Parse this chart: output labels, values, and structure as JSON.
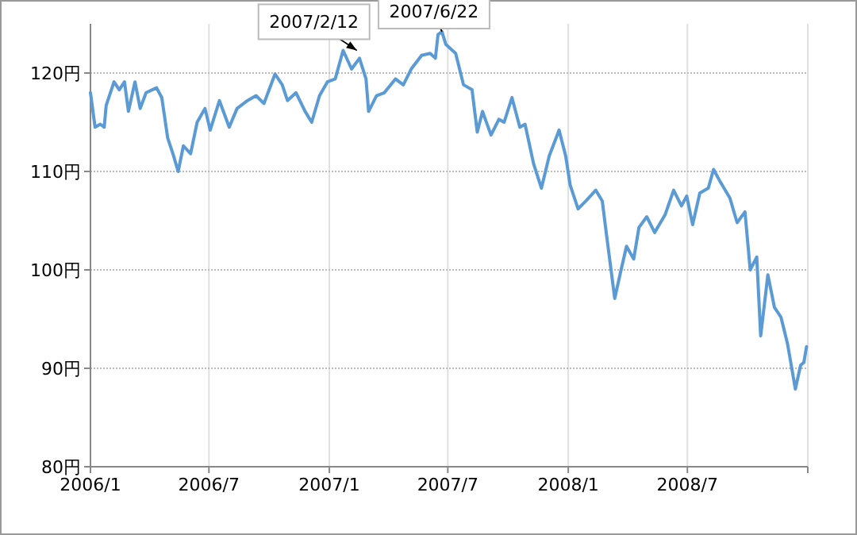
{
  "chart_data": {
    "type": "line",
    "x": [
      "2006-01-01",
      "2006-01-08",
      "2006-01-16",
      "2006-01-22",
      "2006-01-25",
      "2006-02-06",
      "2006-02-14",
      "2006-02-22",
      "2006-02-28",
      "2006-03-10",
      "2006-03-18",
      "2006-03-27",
      "2006-04-12",
      "2006-04-20",
      "2006-04-29",
      "2006-05-07",
      "2006-05-15",
      "2006-05-23",
      "2006-06-03",
      "2006-06-13",
      "2006-06-25",
      "2006-07-03",
      "2006-07-17",
      "2006-08-01",
      "2006-08-13",
      "2006-08-29",
      "2006-09-11",
      "2006-09-23",
      "2006-10-10",
      "2006-10-21",
      "2006-10-29",
      "2006-11-11",
      "2006-11-25",
      "2006-12-05",
      "2006-12-17",
      "2006-12-29",
      "2007-01-10",
      "2007-01-22",
      "2007-02-04",
      "2007-02-16",
      "2007-02-26",
      "2007-03-02",
      "2007-03-14",
      "2007-03-26",
      "2007-04-12",
      "2007-04-24",
      "2007-05-06",
      "2007-05-22",
      "2007-06-04",
      "2007-06-12",
      "2007-06-16",
      "2007-06-22",
      "2007-06-28",
      "2007-07-13",
      "2007-07-25",
      "2007-08-07",
      "2007-08-15",
      "2007-08-23",
      "2007-09-05",
      "2007-09-17",
      "2007-09-25",
      "2007-10-07",
      "2007-10-19",
      "2007-10-27",
      "2007-11-09",
      "2007-11-21",
      "2007-12-03",
      "2007-12-18",
      "2007-12-28",
      "2008-01-04",
      "2008-01-16",
      "2008-01-28",
      "2008-02-12",
      "2008-02-22",
      "2008-02-28",
      "2008-03-12",
      "2008-03-20",
      "2008-03-30",
      "2008-04-10",
      "2008-04-18",
      "2008-04-30",
      "2008-05-12",
      "2008-05-28",
      "2008-06-10",
      "2008-06-22",
      "2008-06-30",
      "2008-07-09",
      "2008-07-20",
      "2008-08-02",
      "2008-08-10",
      "2008-08-19",
      "2008-09-04",
      "2008-09-15",
      "2008-09-27",
      "2008-10-05",
      "2008-10-15",
      "2008-10-21",
      "2008-11-01",
      "2008-11-11",
      "2008-11-21",
      "2008-12-01",
      "2008-12-13",
      "2008-12-21",
      "2008-12-26",
      "2008-12-30"
    ],
    "series": [
      {
        "color": "#5b9bd5",
        "values": [
          118.0,
          114.5,
          114.8,
          114.5,
          116.7,
          119.1,
          118.3,
          119.1,
          116.1,
          119.1,
          116.4,
          118.0,
          118.5,
          117.5,
          113.4,
          111.8,
          110.0,
          112.6,
          111.8,
          115.0,
          116.4,
          114.2,
          117.2,
          114.5,
          116.4,
          117.2,
          117.7,
          116.9,
          119.9,
          118.8,
          117.2,
          118.0,
          116.1,
          115.0,
          117.7,
          119.1,
          119.4,
          122.3,
          120.4,
          121.5,
          119.4,
          116.1,
          117.7,
          118.0,
          119.4,
          118.8,
          120.4,
          121.8,
          122.0,
          121.5,
          123.9,
          124.2,
          122.9,
          122.0,
          118.8,
          118.3,
          114.0,
          116.1,
          113.7,
          115.3,
          115.0,
          117.5,
          114.5,
          114.8,
          110.8,
          108.3,
          111.6,
          114.2,
          111.6,
          108.6,
          106.2,
          107.0,
          108.1,
          107.0,
          103.8,
          97.1,
          99.5,
          102.4,
          101.1,
          104.3,
          105.4,
          103.8,
          105.6,
          108.1,
          106.5,
          107.5,
          104.6,
          107.8,
          108.3,
          110.2,
          109.1,
          107.3,
          104.8,
          105.9,
          100.0,
          101.3,
          93.3,
          99.5,
          96.2,
          95.2,
          92.5,
          87.9,
          90.3,
          90.6,
          92.2
        ]
      }
    ],
    "xlim": [
      "2006-01-01",
      "2009-01-01"
    ],
    "xticks": [
      {
        "value": "2006-01-01",
        "label": "2006/1"
      },
      {
        "value": "2006-07-01",
        "label": "2006/7"
      },
      {
        "value": "2007-01-01",
        "label": "2007/1"
      },
      {
        "value": "2007-07-01",
        "label": "2007/7"
      },
      {
        "value": "2008-01-01",
        "label": "2008/1"
      },
      {
        "value": "2008-07-01",
        "label": "2008/7"
      },
      {
        "value": "2009-01-01",
        "label": null
      }
    ],
    "ylim": [
      80,
      125
    ],
    "yticks": [
      {
        "value": 80,
        "label": "80円"
      },
      {
        "value": 90,
        "label": "90円"
      },
      {
        "value": 100,
        "label": "100円"
      },
      {
        "value": 110,
        "label": "110円"
      },
      {
        "value": 120,
        "label": "120円"
      }
    ],
    "grid": true,
    "annotations": [
      {
        "text": "2007/2/12",
        "x": "2007-02-12",
        "y": 122.3
      },
      {
        "text": "2007/6/22",
        "x": "2007-06-22",
        "y": 124.2
      }
    ]
  }
}
